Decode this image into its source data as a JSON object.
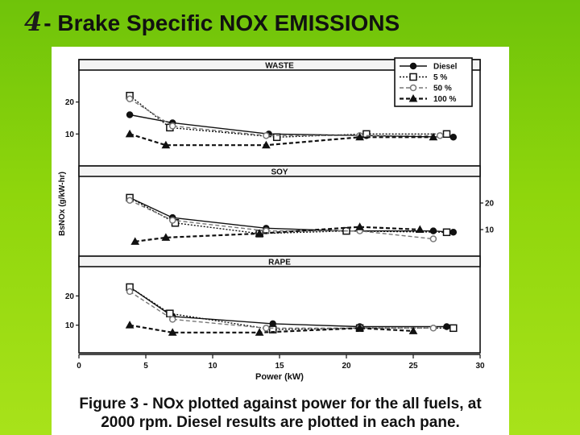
{
  "slide": {
    "number": "4",
    "title": "- Brake Specific NOX EMISSIONS"
  },
  "figure": {
    "caption_line1": "Figure 3 - NOx plotted against power for the all fuels, at",
    "caption_line2": "2000 rpm.  Diesel results are plotted in each pane."
  },
  "chart_data": {
    "type": "line",
    "xlabel": "Power (kW)",
    "ylabel": "BsNOx (g/kW-hr)",
    "xlim": [
      0,
      30
    ],
    "x_ticks": [
      0,
      5,
      10,
      15,
      20,
      25,
      30
    ],
    "ylim": [
      0,
      30
    ],
    "y_ticks": [
      10,
      20
    ],
    "legend": {
      "placement": "top-right",
      "entries": [
        "Diesel",
        "5 %",
        "50 %",
        "100 %"
      ]
    },
    "panels": [
      {
        "name": "WASTE",
        "y_tick_side": "left",
        "series": [
          {
            "name": "Diesel",
            "x": [
              3.8,
              7.0,
              14.2,
              21.5,
              28.0
            ],
            "y": [
              16,
              13.5,
              10,
              9.5,
              9
            ]
          },
          {
            "name": "5 %",
            "x": [
              3.8,
              6.8,
              14.8,
              21.5,
              27.5
            ],
            "y": [
              22,
              12,
              9,
              10,
              10
            ]
          },
          {
            "name": "50 %",
            "x": [
              3.8,
              7.0,
              14.0,
              21.0,
              27.0
            ],
            "y": [
              21,
              12.5,
              9.5,
              9.5,
              9.5
            ]
          },
          {
            "name": "100 %",
            "x": [
              3.8,
              6.5,
              14.0,
              21.0,
              26.5
            ],
            "y": [
              10,
              6.5,
              6.5,
              9,
              9
            ]
          }
        ]
      },
      {
        "name": "SOY",
        "y_tick_side": "right",
        "series": [
          {
            "name": "Diesel",
            "x": [
              3.8,
              7.0,
              14.0,
              20.0,
              26.5,
              28.0
            ],
            "y": [
              22,
              14.5,
              10.5,
              9.5,
              9.5,
              9
            ]
          },
          {
            "name": "5 %",
            "x": [
              3.8,
              7.2,
              13.5,
              20.0,
              27.5
            ],
            "y": [
              22,
              12.5,
              8.5,
              9.5,
              9
            ]
          },
          {
            "name": "50 %",
            "x": [
              3.8,
              7.0,
              14.0,
              21.0,
              26.5
            ],
            "y": [
              21,
              13.5,
              9.5,
              9.5,
              6.5
            ]
          },
          {
            "name": "100 %",
            "x": [
              4.2,
              6.5,
              13.5,
              21.0,
              25.5
            ],
            "y": [
              5.5,
              7,
              8.5,
              11,
              10
            ]
          }
        ]
      },
      {
        "name": "RAPE",
        "y_tick_side": "left",
        "series": [
          {
            "name": "Diesel",
            "x": [
              3.8,
              7.0,
              14.5,
              21.0,
              27.5
            ],
            "y": [
              23,
              13,
              10.5,
              9.5,
              9.5
            ]
          },
          {
            "name": "5 %",
            "x": [
              3.8,
              6.8,
              14.5,
              21.0,
              28.0
            ],
            "y": [
              23,
              14,
              8.5,
              9,
              9
            ]
          },
          {
            "name": "50 %",
            "x": [
              3.8,
              7.0,
              14.0,
              21.0,
              26.5
            ],
            "y": [
              21.5,
              12,
              9,
              9,
              9
            ]
          },
          {
            "name": "100 %",
            "x": [
              3.8,
              7.0,
              13.5,
              21.0,
              25.0
            ],
            "y": [
              10,
              7.5,
              7.5,
              9,
              8
            ]
          }
        ]
      }
    ]
  }
}
